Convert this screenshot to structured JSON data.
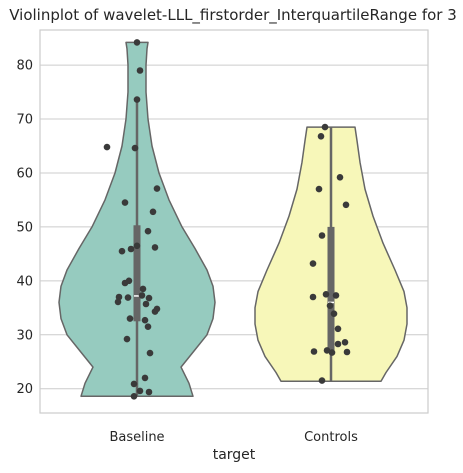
{
  "chart_data": {
    "type": "violin",
    "title": "Violinplot of wavelet-LLL_firstorder_InterquartileRange for 3",
    "xlabel": "target",
    "ylabel": "",
    "categories": [
      "Baseline",
      "Controls"
    ],
    "ylim": [
      15.5,
      86.5
    ],
    "yticks": [
      20,
      30,
      40,
      50,
      60,
      70,
      80
    ],
    "grid": true,
    "colors": {
      "Baseline": "#96cbbf",
      "Controls": "#f7f7b9",
      "outline": "#666666",
      "points": "#3a3a3a",
      "box": "#666666",
      "median": "#ffffff",
      "grid": "#cccccc"
    },
    "series": [
      {
        "category": "Baseline",
        "range": [
          18.6,
          84.2
        ],
        "quartiles": [
          32.5,
          37.2,
          50.3
        ],
        "whiskers": [
          18.6,
          73.5
        ],
        "points": [
          [
            0.0,
            84.2
          ],
          [
            0.03,
            79.0
          ],
          [
            0.0,
            73.6
          ],
          [
            -0.3,
            64.8
          ],
          [
            -0.02,
            64.6
          ],
          [
            0.2,
            57.1
          ],
          [
            -0.12,
            54.5
          ],
          [
            0.16,
            52.8
          ],
          [
            0.11,
            49.2
          ],
          [
            0.0,
            46.5
          ],
          [
            -0.06,
            45.9
          ],
          [
            0.18,
            46.2
          ],
          [
            -0.15,
            45.5
          ],
          [
            -0.08,
            40.0
          ],
          [
            -0.12,
            39.6
          ],
          [
            0.06,
            38.5
          ],
          [
            0.05,
            37.3
          ],
          [
            -0.18,
            37.0
          ],
          [
            0.12,
            36.8
          ],
          [
            -0.09,
            36.9
          ],
          [
            -0.19,
            36.1
          ],
          [
            0.09,
            35.7
          ],
          [
            0.2,
            34.8
          ],
          [
            0.18,
            34.3
          ],
          [
            -0.07,
            33.0
          ],
          [
            0.08,
            32.7
          ],
          [
            0.11,
            31.5
          ],
          [
            -0.1,
            29.2
          ],
          [
            0.13,
            26.6
          ],
          [
            0.08,
            22.0
          ],
          [
            -0.03,
            20.9
          ],
          [
            0.12,
            19.4
          ],
          [
            0.03,
            19.6
          ],
          [
            -0.03,
            18.6
          ]
        ]
      },
      {
        "category": "Controls",
        "range": [
          21.4,
          68.5
        ],
        "quartiles": [
          27.0,
          36.0,
          50.0
        ],
        "whiskers": [
          21.4,
          68.5
        ],
        "points": [
          [
            -0.06,
            68.5
          ],
          [
            -0.1,
            66.8
          ],
          [
            0.09,
            59.2
          ],
          [
            -0.12,
            57.0
          ],
          [
            0.15,
            54.1
          ],
          [
            -0.09,
            48.4
          ],
          [
            -0.18,
            43.2
          ],
          [
            -0.05,
            37.5
          ],
          [
            0.05,
            37.3
          ],
          [
            -0.18,
            37.0
          ],
          [
            -0.01,
            35.4
          ],
          [
            0.03,
            33.9
          ],
          [
            0.07,
            31.1
          ],
          [
            0.14,
            28.6
          ],
          [
            0.07,
            28.3
          ],
          [
            -0.04,
            27.1
          ],
          [
            -0.17,
            26.9
          ],
          [
            0.01,
            26.7
          ],
          [
            0.16,
            26.8
          ],
          [
            -0.09,
            21.5
          ]
        ]
      }
    ]
  }
}
